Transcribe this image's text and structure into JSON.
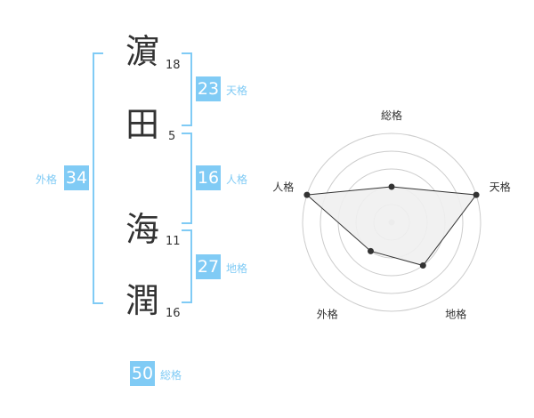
{
  "name": [
    {
      "char": "濵",
      "strokes": "18"
    },
    {
      "char": "田",
      "strokes": "5"
    },
    {
      "char": "海",
      "strokes": "11"
    },
    {
      "char": "潤",
      "strokes": "16"
    }
  ],
  "kaku": {
    "tenkaku": {
      "label": "天格",
      "value": "23"
    },
    "jinkaku": {
      "label": "人格",
      "value": "16"
    },
    "chikaku": {
      "label": "地格",
      "value": "27"
    },
    "gaikaku": {
      "label": "外格",
      "value": "34"
    },
    "soukaku": {
      "label": "総格",
      "value": "50"
    }
  },
  "colors": {
    "accent": "#80cbf5",
    "fill": "#f0f0f0",
    "line": "#333333",
    "grid": "#cccccc"
  },
  "chart_data": {
    "type": "radar",
    "axes": [
      "総格",
      "天格",
      "地格",
      "外格",
      "人格"
    ],
    "values": [
      2,
      5,
      3,
      2,
      5
    ],
    "range": [
      0,
      5
    ],
    "grid": true
  }
}
